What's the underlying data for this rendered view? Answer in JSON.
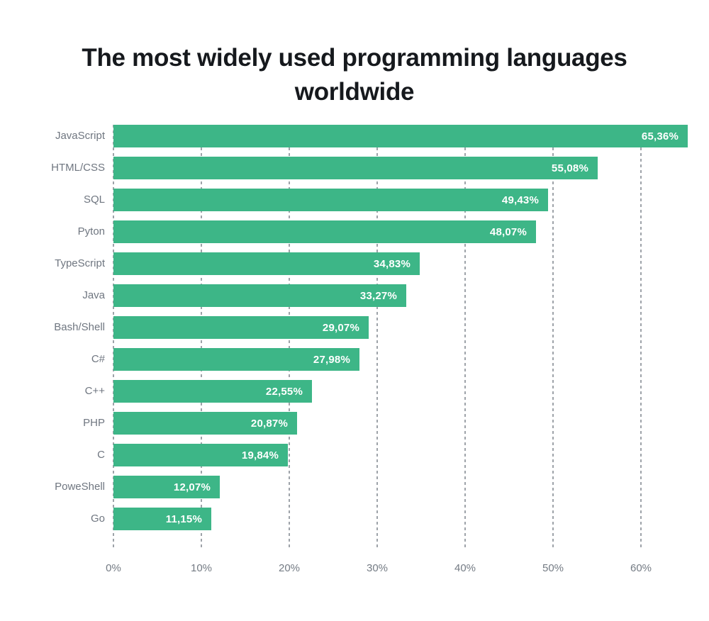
{
  "title": "The most widely used programming languages worldwide",
  "colors": {
    "background": "#ffffff",
    "bar": "#3db687",
    "title_text": "#16191d",
    "category_label": "#6f7680",
    "tick_label": "#747b84",
    "gridline": "#9ea3a9",
    "value_text": "#ffffff"
  },
  "chart_data": {
    "type": "bar",
    "orientation": "horizontal",
    "title": "The most widely used programming languages worldwide",
    "categories": [
      "JavaScript",
      "HTML/CSS",
      "SQL",
      "Pyton",
      "TypeScript",
      "Java",
      "Bash/Shell",
      "C#",
      "C++",
      "PHP",
      "C",
      "PoweShell",
      "Go"
    ],
    "values": [
      65.36,
      55.08,
      49.43,
      48.07,
      34.83,
      33.27,
      29.07,
      27.98,
      22.55,
      20.87,
      19.84,
      12.07,
      11.15
    ],
    "value_labels": [
      "65,36%",
      "55,08%",
      "49,43%",
      "48,07%",
      "34,83%",
      "33,27%",
      "29,07%",
      "27,98%",
      "22,55%",
      "20,87%",
      "19,84%",
      "12,07%",
      "11,15%"
    ],
    "x_ticks": [
      "0%",
      "10%",
      "20%",
      "30%",
      "40%",
      "50%",
      "60%"
    ],
    "x_tick_values": [
      0,
      10,
      20,
      30,
      40,
      50,
      60
    ],
    "xlim": [
      0,
      65.36
    ],
    "xlabel": "",
    "ylabel": "",
    "grid": "dashed-vertical",
    "legend": "none",
    "value_label_position": "inside-end"
  }
}
